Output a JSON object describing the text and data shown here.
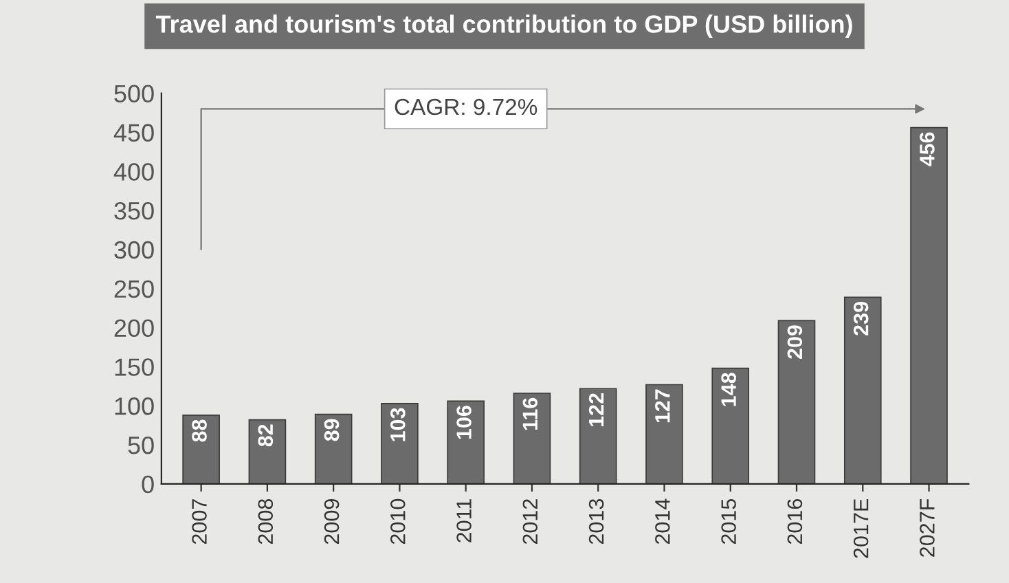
{
  "chart_data": {
    "type": "bar",
    "title": "Travel and tourism's total contribution to GDP (USD billion)",
    "categories": [
      "2007",
      "2008",
      "2009",
      "2010",
      "2011",
      "2012",
      "2013",
      "2014",
      "2015",
      "2016",
      "2017E",
      "2027F"
    ],
    "values": [
      88,
      82,
      89,
      103,
      106,
      116,
      122,
      127,
      148,
      209,
      239,
      456
    ],
    "color": "#6b6b6b",
    "ylim": [
      0,
      500
    ],
    "yticks": [
      0,
      50,
      100,
      150,
      200,
      250,
      300,
      350,
      400,
      450,
      500
    ],
    "data_labels": true,
    "annotations": [
      "CAGR: 9.72%"
    ]
  }
}
